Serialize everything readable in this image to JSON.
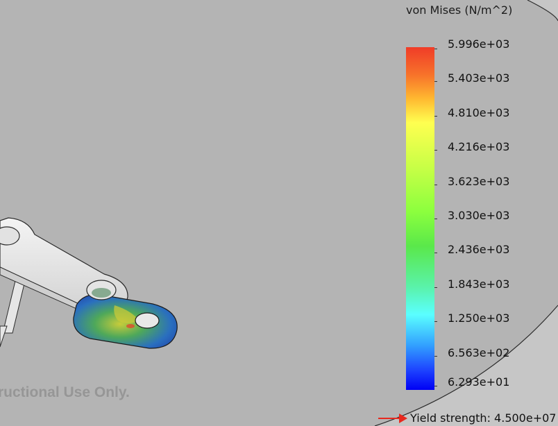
{
  "legend": {
    "title": "von Mises (N/m^2)",
    "ticks": [
      "5.996e+03",
      "5.403e+03",
      "4.810e+03",
      "4.216e+03",
      "3.623e+03",
      "3.030e+03",
      "2.436e+03",
      "1.843e+03",
      "1.250e+03",
      "6.563e+02",
      "6.293e+01"
    ],
    "colormap": [
      "#f03c28",
      "#ffff50",
      "#5ae84a",
      "#5affff",
      "#0000f5"
    ]
  },
  "watermark": {
    "text": "tructional Use Only."
  },
  "yield": {
    "label": "Yield strength: 4.500e+07",
    "arrow_color": "#e8281e"
  }
}
